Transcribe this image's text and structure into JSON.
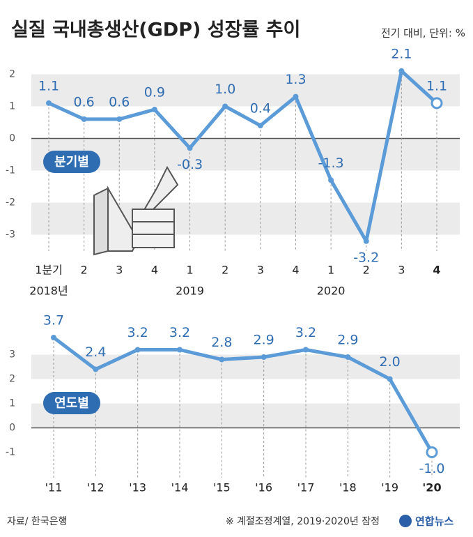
{
  "title": "실질 국내총생산(GDP) 성장률 추이",
  "subtitle": "전기 대비, 단위: %",
  "source": "자료/ 한국은행",
  "note": "※ 계절조정계열, 2019·2020년 잠정",
  "logo": "연합뉴스",
  "chart_data": [
    {
      "type": "line",
      "label": "분기별",
      "color": "#5b9bd8",
      "categories": [
        "1분기",
        "2",
        "3",
        "4",
        "1",
        "2",
        "3",
        "4",
        "1",
        "2",
        "3",
        "4"
      ],
      "year_labels": [
        "2018년",
        null,
        null,
        null,
        "2019",
        null,
        null,
        null,
        "2020",
        null,
        null,
        null
      ],
      "values": [
        1.1,
        0.6,
        0.6,
        0.9,
        -0.3,
        1.0,
        0.4,
        1.3,
        -1.3,
        -3.2,
        2.1,
        1.1
      ],
      "value_labels": [
        "1.1",
        "0.6",
        "0.6",
        "0.9",
        "-0.3",
        "1.0",
        "0.4",
        "1.3",
        "-1.3",
        "-3.2",
        "2.1",
        "1.1"
      ],
      "ylim": [
        -3.4,
        2.4
      ],
      "yticks": [
        -3,
        -2,
        -1,
        0,
        1,
        2
      ]
    },
    {
      "type": "line",
      "label": "연도별",
      "color": "#5b9bd8",
      "categories": [
        "'11",
        "'12",
        "'13",
        "'14",
        "'15",
        "'16",
        "'17",
        "'18",
        "'19",
        "'20"
      ],
      "values": [
        3.7,
        2.4,
        3.2,
        3.2,
        2.8,
        2.9,
        3.2,
        2.9,
        2.0,
        -1.0
      ],
      "value_labels": [
        "3.7",
        "2.4",
        "3.2",
        "3.2",
        "2.8",
        "2.9",
        "3.2",
        "2.9",
        "2.0",
        "-1.0"
      ],
      "ylim": [
        -1.9,
        4.1
      ],
      "yticks": [
        -1,
        0,
        1,
        2,
        3
      ]
    }
  ]
}
